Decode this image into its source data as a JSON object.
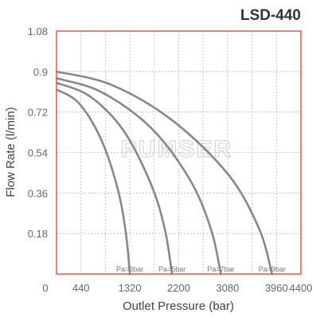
{
  "chart_data": {
    "type": "line",
    "title": "LSD-440",
    "xlabel": "Outlet Pressure (bar)",
    "ylabel": "Flow Rate (l/min)",
    "xlim": [
      0,
      4400
    ],
    "ylim": [
      0,
      1.08
    ],
    "x_ticks": [
      "0",
      "440",
      "1320",
      "2200",
      "3080",
      "3960",
      "4400"
    ],
    "y_ticks": [
      "0.18",
      "0.36",
      "0.54",
      "0.72",
      "0.9",
      "1.08"
    ],
    "grid": true,
    "watermark": "PUMSER",
    "colors": {
      "frame": "#e8554a",
      "curve": "#888888",
      "grid": "#bbbbbb"
    },
    "series": [
      {
        "name": "Pa=3bar",
        "x": [
          0,
          400,
          800,
          1100,
          1250,
          1320
        ],
        "y": [
          0.82,
          0.76,
          0.6,
          0.38,
          0.18,
          0.0
        ]
      },
      {
        "name": "Pa=5bar",
        "x": [
          0,
          600,
          1200,
          1700,
          1950,
          2080
        ],
        "y": [
          0.85,
          0.79,
          0.64,
          0.4,
          0.2,
          0.0
        ]
      },
      {
        "name": "Pa=7bar",
        "x": [
          0,
          800,
          1700,
          2400,
          2780,
          2960
        ],
        "y": [
          0.87,
          0.81,
          0.65,
          0.42,
          0.2,
          0.0
        ]
      },
      {
        "name": "Pa=9bar",
        "x": [
          0,
          1000,
          2100,
          3100,
          3650,
          3880
        ],
        "y": [
          0.9,
          0.84,
          0.68,
          0.44,
          0.2,
          0.0
        ]
      }
    ]
  }
}
